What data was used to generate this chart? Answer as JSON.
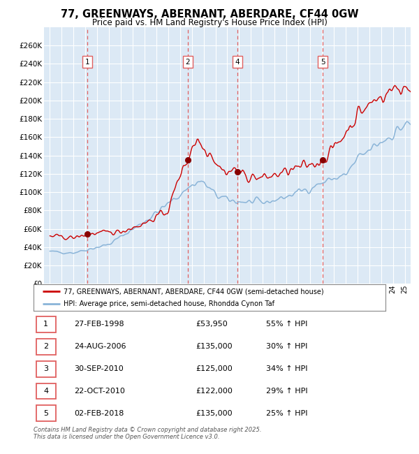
{
  "title": "77, GREENWAYS, ABERNANT, ABERDARE, CF44 0GW",
  "subtitle": "Price paid vs. HM Land Registry's House Price Index (HPI)",
  "ylim": [
    0,
    280000
  ],
  "yticks": [
    0,
    20000,
    40000,
    60000,
    80000,
    100000,
    120000,
    140000,
    160000,
    180000,
    200000,
    220000,
    240000,
    260000
  ],
  "xlim_start": 1994.5,
  "xlim_end": 2025.5,
  "fig_bg_color": "#ffffff",
  "plot_bg_color": "#dce9f5",
  "grid_color": "#ffffff",
  "hpi_color": "#8ab4d8",
  "property_color": "#cc0000",
  "sale_marker_color": "#880000",
  "dashed_line_color": "#e06060",
  "sale_points": [
    {
      "num": "1",
      "year": 1998.15,
      "price": 53950
    },
    {
      "num": "2",
      "year": 2006.65,
      "price": 135000
    },
    {
      "num": "4",
      "year": 2010.83,
      "price": 122000
    },
    {
      "num": "5",
      "year": 2018.08,
      "price": 135000
    }
  ],
  "legend_property_label": "77, GREENWAYS, ABERNANT, ABERDARE, CF44 0GW (semi-detached house)",
  "legend_hpi_label": "HPI: Average price, semi-detached house, Rhondda Cynon Taf",
  "table_data": [
    {
      "num": "1",
      "date": "27-FEB-1998",
      "price": "£53,950",
      "change": "55% ↑ HPI"
    },
    {
      "num": "2",
      "date": "24-AUG-2006",
      "price": "£135,000",
      "change": "30% ↑ HPI"
    },
    {
      "num": "3",
      "date": "30-SEP-2010",
      "price": "£125,000",
      "change": "34% ↑ HPI"
    },
    {
      "num": "4",
      "date": "22-OCT-2010",
      "price": "£122,000",
      "change": "29% ↑ HPI"
    },
    {
      "num": "5",
      "date": "02-FEB-2018",
      "price": "£135,000",
      "change": "25% ↑ HPI"
    }
  ],
  "footer_text": "Contains HM Land Registry data © Crown copyright and database right 2025.\nThis data is licensed under the Open Government Licence v3.0."
}
